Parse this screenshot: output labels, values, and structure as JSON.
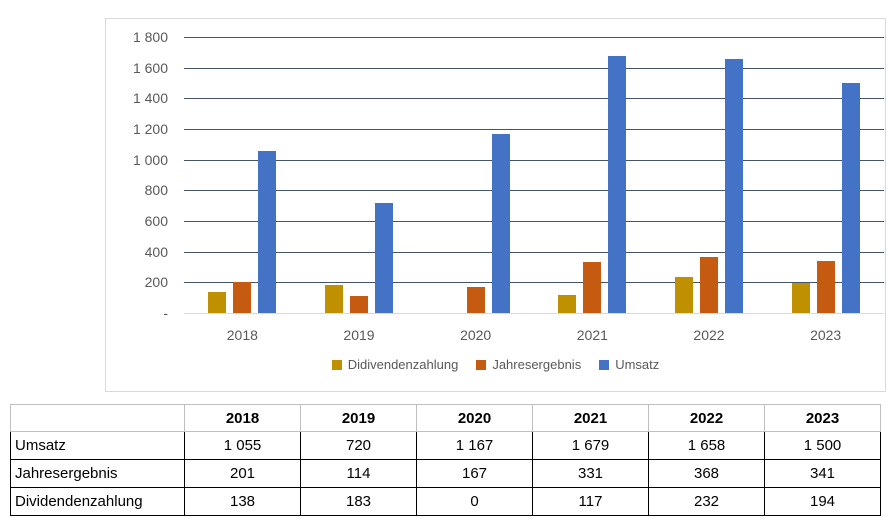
{
  "chart_data": {
    "type": "bar",
    "title": "",
    "xlabel": "",
    "ylabel": "",
    "categories": [
      "2018",
      "2019",
      "2020",
      "2021",
      "2022",
      "2023"
    ],
    "series": [
      {
        "name": "Didivendenzahlung",
        "color": "#BF9000",
        "values": [
          138,
          183,
          0,
          117,
          232,
          194
        ]
      },
      {
        "name": "Jahresergebnis",
        "color": "#C55A11",
        "values": [
          201,
          114,
          167,
          331,
          368,
          341
        ]
      },
      {
        "name": "Umsatz",
        "color": "#4472C4",
        "values": [
          1055,
          720,
          1167,
          1679,
          1658,
          1500
        ]
      }
    ],
    "ylim": [
      0,
      1800
    ],
    "y_tick_step": 200,
    "y_tick_labels": [
      "1 800",
      "1 600",
      "1 400",
      "1 200",
      "1 000",
      "800",
      "600",
      "400",
      "200",
      "-"
    ],
    "grid": true,
    "legend_position": "bottom"
  },
  "colors": {
    "gridline": "#44546A",
    "axis_line": "#D9D9D9",
    "chart_border": "#D9D9D9",
    "tick_text": "#595959",
    "header_border": "#BFBFBF",
    "data_border": "#000000"
  },
  "table": {
    "corner_label": "",
    "year_headers": [
      "2018",
      "2019",
      "2020",
      "2021",
      "2022",
      "2023"
    ],
    "rows": [
      {
        "label": "Umsatz",
        "values": [
          "1 055",
          "720",
          "1 167",
          "1 679",
          "1 658",
          "1 500"
        ]
      },
      {
        "label": "Jahresergebnis",
        "values": [
          "201",
          "114",
          "167",
          "331",
          "368",
          "341"
        ]
      },
      {
        "label": "Dividendenzahlung",
        "values": [
          "138",
          "183",
          "0",
          "117",
          "232",
          "194"
        ]
      }
    ]
  }
}
